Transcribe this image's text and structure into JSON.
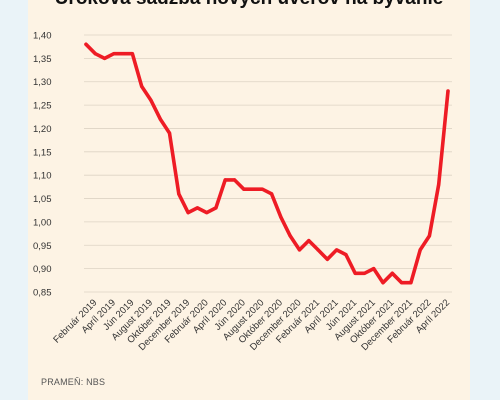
{
  "chart_data": {
    "type": "line",
    "title": "Úroková sadzba nových úverov na bývanie",
    "source": "PRAMEŇ: NBS",
    "xlabel": "",
    "ylabel": "",
    "ylim": [
      0.85,
      1.4
    ],
    "yticks": [
      "1,40",
      "1,35",
      "1,30",
      "1,25",
      "1,20",
      "1,15",
      "1,10",
      "1,05",
      "1,00",
      "0,95",
      "0,90",
      "0,85"
    ],
    "grid": true,
    "color": "#ee1c25",
    "x_labels": [
      "Február 2019",
      "Apríl 2019",
      "Jún 2019",
      "August 2019",
      "Október 2019",
      "December 2019",
      "Február 2020",
      "Apríl 2020",
      "Jún 2020",
      "August 2020",
      "Október 2020",
      "December 2020",
      "Február 2021",
      "Apríl 2021",
      "Jún 2021",
      "August 2021",
      "Október 2021",
      "December 2021",
      "Február 2022",
      "Apríl 2022"
    ],
    "x": [
      "01/2019",
      "02/2019",
      "03/2019",
      "04/2019",
      "05/2019",
      "06/2019",
      "07/2019",
      "08/2019",
      "09/2019",
      "10/2019",
      "11/2019",
      "12/2019",
      "01/2020",
      "02/2020",
      "03/2020",
      "04/2020",
      "05/2020",
      "06/2020",
      "07/2020",
      "08/2020",
      "09/2020",
      "10/2020",
      "11/2020",
      "12/2020",
      "01/2021",
      "02/2021",
      "03/2021",
      "04/2021",
      "05/2021",
      "06/2021",
      "07/2021",
      "08/2021",
      "09/2021",
      "10/2021",
      "11/2021",
      "12/2021",
      "01/2022",
      "02/2022",
      "03/2022",
      "04/2022"
    ],
    "values": [
      1.38,
      1.36,
      1.35,
      1.36,
      1.36,
      1.36,
      1.29,
      1.26,
      1.22,
      1.19,
      1.06,
      1.02,
      1.03,
      1.02,
      1.03,
      1.09,
      1.09,
      1.07,
      1.07,
      1.07,
      1.06,
      1.01,
      0.97,
      0.94,
      0.96,
      0.94,
      0.92,
      0.94,
      0.93,
      0.89,
      0.89,
      0.9,
      0.87,
      0.89,
      0.87,
      0.87,
      0.94,
      0.97,
      1.08,
      1.28
    ]
  }
}
